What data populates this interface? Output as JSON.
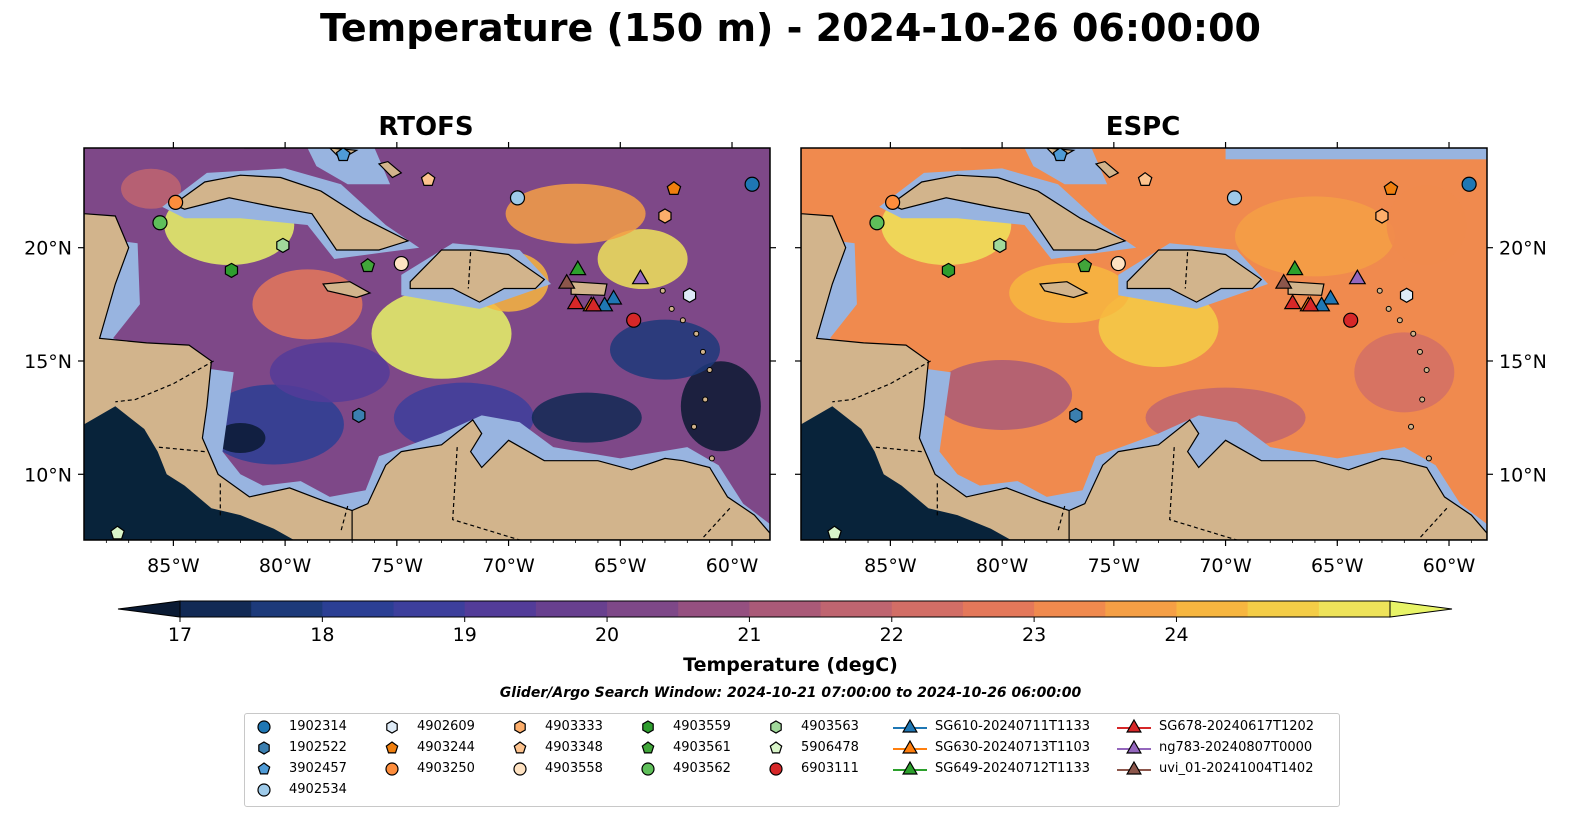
{
  "title": "Temperature (150 m) - 2024-10-26 06:00:00",
  "panels": [
    {
      "title": "RTOFS"
    },
    {
      "title": "ESPC"
    }
  ],
  "axes": {
    "lon_labels": [
      "85°W",
      "80°W",
      "75°W",
      "70°W",
      "65°W",
      "60°W"
    ],
    "lat_labels": [
      "20°N",
      "15°N",
      "10°N"
    ]
  },
  "colorbar": {
    "label": "Temperature (degC)",
    "ticks": [
      "17",
      "18",
      "19",
      "20",
      "21",
      "22",
      "23",
      "24"
    ],
    "colors": [
      "#0a1a33",
      "#122a55",
      "#1d3a7a",
      "#2b3f94",
      "#3d3f9c",
      "#533c99",
      "#68408f",
      "#7e4888",
      "#955080",
      "#aa5a78",
      "#bf6570",
      "#d26e66",
      "#e4785a",
      "#f08a4e",
      "#f59f45",
      "#f7b640",
      "#f4cd47",
      "#eee35a",
      "#e8f467"
    ],
    "ocean_colors": {
      "land": "#d2b48c",
      "shelf": "#98b4e0",
      "deep": "#08233a"
    }
  },
  "search_window": "Glider/Argo Search Window: 2024-10-21 07:00:00 to 2024-10-26 06:00:00",
  "legend": [
    {
      "label": "1902314",
      "marker": "circle",
      "color": "#1f77b4"
    },
    {
      "label": "1902522",
      "marker": "hexagon",
      "color": "#3b7fb0"
    },
    {
      "label": "3902457",
      "marker": "pentagon",
      "color": "#4f9bd6"
    },
    {
      "label": "4902534",
      "marker": "circle",
      "color": "#9ecae9"
    },
    {
      "label": "4902609",
      "marker": "hexagon",
      "color": "#deebf7"
    },
    {
      "label": "4903244",
      "marker": "pentagon",
      "color": "#f07f0e"
    },
    {
      "label": "4903250",
      "marker": "circle",
      "color": "#fd8d3c"
    },
    {
      "label": "4903333",
      "marker": "hexagon",
      "color": "#fdae6b"
    },
    {
      "label": "4903348",
      "marker": "pentagon",
      "color": "#fdc38e"
    },
    {
      "label": "4903558",
      "marker": "circle",
      "color": "#fee2c2"
    },
    {
      "label": "4903559",
      "marker": "hexagon",
      "color": "#2e9d2e"
    },
    {
      "label": "4903561",
      "marker": "pentagon",
      "color": "#41a63a"
    },
    {
      "label": "4903562",
      "marker": "circle",
      "color": "#5fbf5a"
    },
    {
      "label": "4903563",
      "marker": "hexagon",
      "color": "#a1d99b"
    },
    {
      "label": "5906478",
      "marker": "pentagon",
      "color": "#d9f5c9"
    },
    {
      "label": "6903111",
      "marker": "circle",
      "color": "#d62728"
    },
    {
      "label": "SG610-20240711T1133",
      "marker": "triangle",
      "color": "#1f77b4"
    },
    {
      "label": "SG630-20240713T1103",
      "marker": "triangle",
      "color": "#ff7f0e"
    },
    {
      "label": "SG649-20240712T1133",
      "marker": "triangle",
      "color": "#2ca02c"
    },
    {
      "label": "SG678-20240617T1202",
      "marker": "triangle",
      "color": "#d62728"
    },
    {
      "label": "ng783-20240807T0000",
      "marker": "triangle",
      "color": "#9467bd"
    },
    {
      "label": "uvi_01-20241004T1402",
      "marker": "triangle",
      "color": "#8c564b"
    }
  ],
  "stations": [
    {
      "id": "1902314",
      "lon": -59.1,
      "lat": 22.8
    },
    {
      "id": "1902522",
      "lon": -76.7,
      "lat": 12.6
    },
    {
      "id": "3902457",
      "lon": -77.4,
      "lat": 24.1
    },
    {
      "id": "4902534",
      "lon": -69.6,
      "lat": 22.2
    },
    {
      "id": "4902609",
      "lon": -61.9,
      "lat": 17.9
    },
    {
      "id": "4903244",
      "lon": -62.6,
      "lat": 22.6
    },
    {
      "id": "4903250",
      "lon": -84.9,
      "lat": 22.0
    },
    {
      "id": "4903333",
      "lon": -63.0,
      "lat": 21.4
    },
    {
      "id": "4903348",
      "lon": -73.6,
      "lat": 23.0
    },
    {
      "id": "4903558",
      "lon": -74.8,
      "lat": 19.3
    },
    {
      "id": "4903559",
      "lon": -82.4,
      "lat": 19.0
    },
    {
      "id": "4903561",
      "lon": -76.3,
      "lat": 19.2
    },
    {
      "id": "4903562",
      "lon": -85.6,
      "lat": 21.1
    },
    {
      "id": "4903563",
      "lon": -80.1,
      "lat": 20.1
    },
    {
      "id": "5906478",
      "lon": -87.5,
      "lat": 7.4
    },
    {
      "id": "6903111",
      "lon": -64.4,
      "lat": 16.8
    },
    {
      "id": "SG610-20240711T1133",
      "lon": -65.3,
      "lat": 17.8
    },
    {
      "id": "SG610-20240711T1133",
      "lon": -65.7,
      "lat": 17.5
    },
    {
      "id": "SG630-20240713T1103",
      "lon": -66.3,
      "lat": 17.5
    },
    {
      "id": "SG649-20240712T1133",
      "lon": -66.9,
      "lat": 19.1
    },
    {
      "id": "SG678-20240617T1202",
      "lon": -67.0,
      "lat": 17.6
    },
    {
      "id": "SG678-20240617T1202",
      "lon": -66.2,
      "lat": 17.5
    },
    {
      "id": "ng783-20240807T0000",
      "lon": -64.1,
      "lat": 18.7
    },
    {
      "id": "uvi_01-20241004T1402",
      "lon": -67.4,
      "lat": 18.5
    }
  ]
}
